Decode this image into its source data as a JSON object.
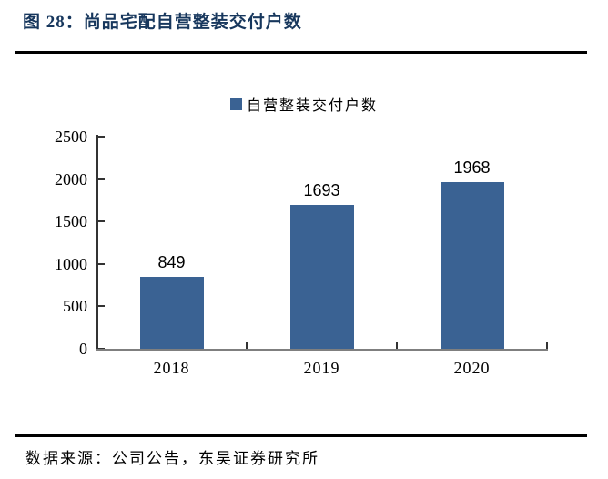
{
  "header": {
    "title": "图 28：尚品宅配自营整装交付户数"
  },
  "footer": {
    "source": "数据来源：公司公告，东吴证券研究所"
  },
  "colors": {
    "title": "#17375D",
    "bar": "#3A6293",
    "axis": "#333333",
    "baseline": "#7F7F7F",
    "rule": "#000000",
    "label": "#000000"
  },
  "chart_data": {
    "type": "bar",
    "title": "图 28：尚品宅配自营整装交付户数",
    "legend": [
      "自营整装交付户数"
    ],
    "legend_position": "top-center",
    "categories": [
      "2018",
      "2019",
      "2020"
    ],
    "values": [
      849,
      1693,
      1968
    ],
    "data_labels": [
      "849",
      "1693",
      "1968"
    ],
    "xlabel": "",
    "ylabel": "",
    "ylim": [
      0,
      2500
    ],
    "yticks": [
      0,
      500,
      1000,
      1500,
      2000,
      2500
    ],
    "grid": false
  }
}
